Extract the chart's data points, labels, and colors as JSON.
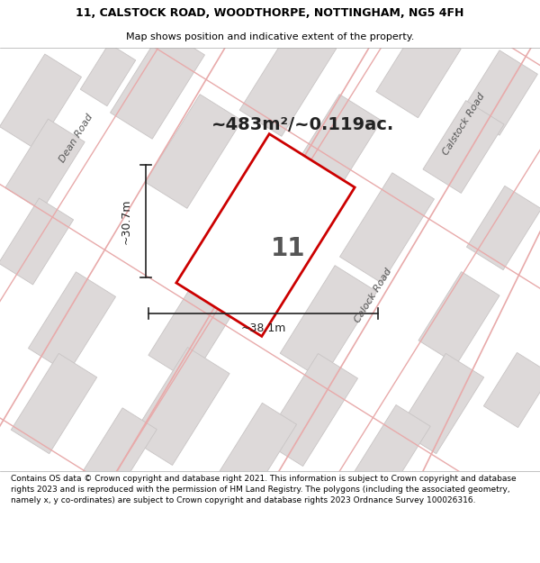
{
  "title_line1": "11, CALSTOCK ROAD, WOODTHORPE, NOTTINGHAM, NG5 4FH",
  "title_line2": "Map shows position and indicative extent of the property.",
  "area_text": "~483m²/~0.119ac.",
  "dim_width": "~38.1m",
  "dim_height": "~30.7m",
  "property_number": "11",
  "footer": "Contains OS data © Crown copyright and database right 2021. This information is subject to Crown copyright and database rights 2023 and is reproduced with the permission of HM Land Registry. The polygons (including the associated geometry, namely x, y co-ordinates) are subject to Crown copyright and database rights 2023 Ordnance Survey 100026316.",
  "bg_color": "#f2efef",
  "building_fill": "#ddd9d9",
  "building_edge": "#c8c4c4",
  "road_color": "#e8aaaa",
  "road_color2": "#f0c0c0",
  "property_outline_color": "#cc0000",
  "property_fill": "#ffffff",
  "dim_line_color": "#222222",
  "title_bg": "#ffffff",
  "footer_bg": "#ffffff",
  "title_fontsize": 9.0,
  "subtitle_fontsize": 8.0,
  "area_fontsize": 14,
  "prop_num_fontsize": 20,
  "street_fontsize": 8,
  "footer_fontsize": 6.5
}
